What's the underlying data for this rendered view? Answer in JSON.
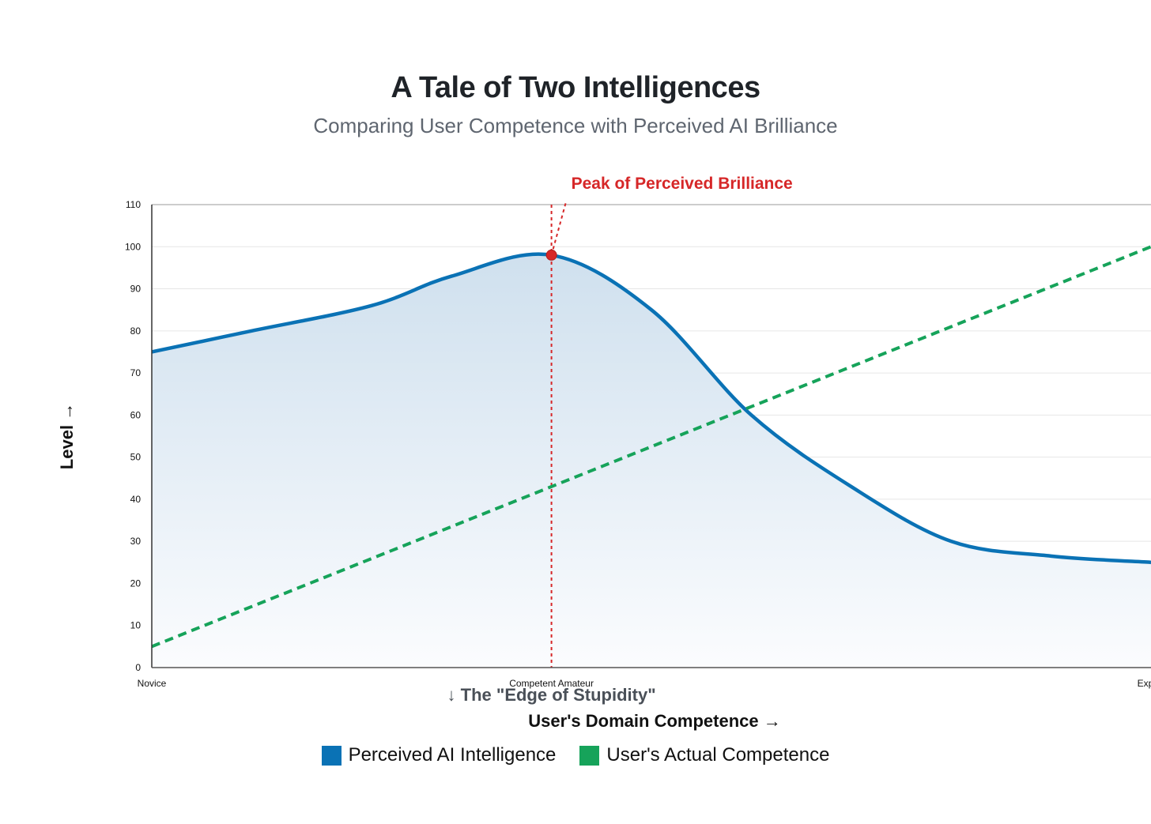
{
  "chart_data": {
    "type": "area",
    "title": "A Tale of Two Intelligences",
    "subtitle": "Comparing User Competence with Perceived AI Brilliance",
    "xlabel": "User's Domain Competence →",
    "ylabel": "Level →",
    "x_tick_labels": [
      {
        "x": 0,
        "label": "Novice"
      },
      {
        "x": 40,
        "label": "Competent Amateur"
      },
      {
        "x": 100,
        "label": "Expert"
      }
    ],
    "xlim": [
      0,
      100
    ],
    "ylim": [
      0,
      110
    ],
    "y_ticks": [
      0,
      10,
      20,
      30,
      40,
      50,
      60,
      70,
      80,
      90,
      100,
      110
    ],
    "grid": "horizontal",
    "legend_position": "bottom-center",
    "series": [
      {
        "name": "Perceived AI Intelligence",
        "color": "#0a72b5",
        "style": "solid",
        "filled": true,
        "x": [
          0,
          10,
          22,
          30,
          40,
          50,
          60,
          70,
          80,
          90,
          100
        ],
        "y": [
          75,
          80,
          86,
          93,
          98,
          85,
          60,
          43,
          30,
          26.5,
          25
        ]
      },
      {
        "name": "User's Actual Competence",
        "color": "#16a35a",
        "style": "dashed",
        "filled": false,
        "x": [
          0,
          100
        ],
        "y": [
          5,
          100
        ]
      }
    ],
    "annotations": [
      {
        "text": "Peak of Perceived Brilliance",
        "x": 40,
        "y": 98,
        "color": "#d62728"
      },
      {
        "text": "↓ The \"Edge of Stupidity\"",
        "x": 40,
        "color": "#4a5058"
      }
    ],
    "reference_line": {
      "x": 40,
      "color": "#d62728",
      "style": "dotted"
    }
  }
}
